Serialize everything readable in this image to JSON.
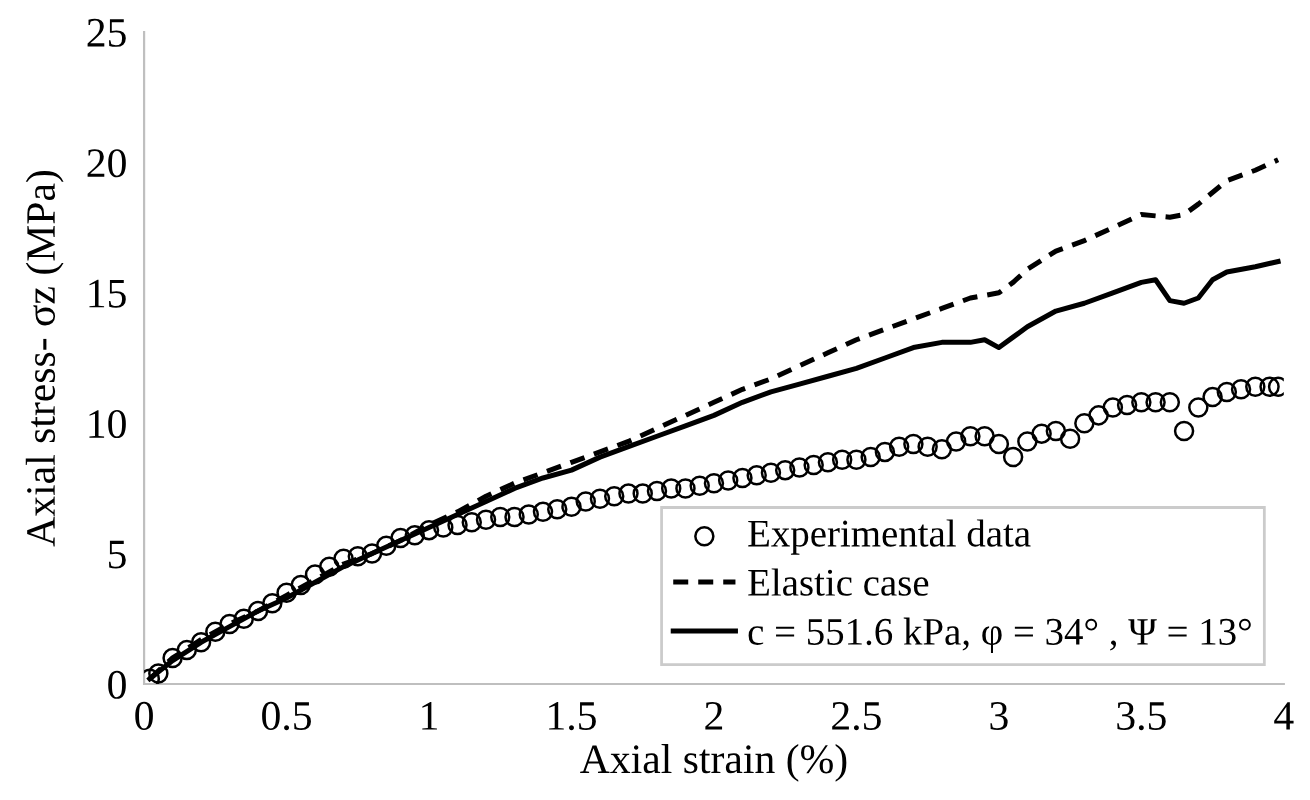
{
  "chart_data": {
    "type": "line",
    "xlabel": "Axial strain (%)",
    "ylabel": "Axial stress- σz (MPa)",
    "xlim": [
      0,
      4
    ],
    "xticks": [
      0,
      0.5,
      1,
      1.5,
      2,
      2.5,
      3,
      3.5,
      4
    ],
    "ylim": [
      0,
      25
    ],
    "yticks": [
      0,
      5,
      10,
      15,
      20,
      25
    ],
    "grid": false,
    "legend": "bottom right",
    "series": [
      {
        "name": "Experimental data",
        "type": "scatter",
        "marker": "circle",
        "color": "#000000",
        "x": [
          0.02,
          0.05,
          0.1,
          0.15,
          0.2,
          0.25,
          0.3,
          0.35,
          0.4,
          0.45,
          0.5,
          0.55,
          0.6,
          0.65,
          0.7,
          0.75,
          0.8,
          0.85,
          0.9,
          0.95,
          1.0,
          1.05,
          1.1,
          1.15,
          1.2,
          1.25,
          1.3,
          1.35,
          1.4,
          1.45,
          1.5,
          1.55,
          1.6,
          1.65,
          1.7,
          1.75,
          1.8,
          1.85,
          1.9,
          1.95,
          2.0,
          2.05,
          2.1,
          2.15,
          2.2,
          2.25,
          2.3,
          2.35,
          2.4,
          2.45,
          2.5,
          2.55,
          2.6,
          2.65,
          2.7,
          2.75,
          2.8,
          2.85,
          2.9,
          2.95,
          3.0,
          3.05,
          3.1,
          3.15,
          3.2,
          3.25,
          3.3,
          3.35,
          3.4,
          3.45,
          3.5,
          3.55,
          3.6,
          3.65,
          3.7,
          3.75,
          3.8,
          3.85,
          3.9,
          3.95,
          3.98
        ],
        "values": [
          0.2,
          0.4,
          1.0,
          1.3,
          1.6,
          2.0,
          2.3,
          2.5,
          2.8,
          3.1,
          3.5,
          3.8,
          4.2,
          4.5,
          4.8,
          4.9,
          5.0,
          5.3,
          5.6,
          5.7,
          5.9,
          6.0,
          6.1,
          6.2,
          6.3,
          6.4,
          6.4,
          6.5,
          6.6,
          6.7,
          6.8,
          7.0,
          7.1,
          7.2,
          7.3,
          7.3,
          7.4,
          7.5,
          7.5,
          7.6,
          7.7,
          7.8,
          7.9,
          8.0,
          8.1,
          8.2,
          8.3,
          8.4,
          8.5,
          8.6,
          8.6,
          8.7,
          8.9,
          9.1,
          9.2,
          9.1,
          9.0,
          9.3,
          9.5,
          9.5,
          9.2,
          8.7,
          9.3,
          9.6,
          9.7,
          9.4,
          10.0,
          10.3,
          10.6,
          10.7,
          10.8,
          10.8,
          10.8,
          9.7,
          10.6,
          11.0,
          11.2,
          11.3,
          11.4,
          11.4,
          11.4
        ]
      },
      {
        "name": "Elastic case",
        "line_style": "dashed",
        "color": "#000000",
        "x": [
          0.02,
          0.1,
          0.2,
          0.3,
          0.4,
          0.5,
          0.6,
          0.7,
          0.8,
          0.9,
          1.0,
          1.1,
          1.2,
          1.3,
          1.4,
          1.5,
          1.6,
          1.7,
          1.8,
          1.9,
          2.0,
          2.1,
          2.2,
          2.3,
          2.4,
          2.5,
          2.6,
          2.7,
          2.8,
          2.9,
          3.0,
          3.05,
          3.1,
          3.2,
          3.3,
          3.4,
          3.5,
          3.6,
          3.65,
          3.7,
          3.8,
          3.9,
          3.98
        ],
        "values": [
          0.2,
          1.0,
          1.7,
          2.3,
          2.8,
          3.4,
          4.0,
          4.6,
          5.0,
          5.5,
          6.1,
          6.6,
          7.2,
          7.7,
          8.1,
          8.5,
          8.9,
          9.3,
          9.8,
          10.3,
          10.8,
          11.3,
          11.7,
          12.2,
          12.7,
          13.2,
          13.6,
          14.0,
          14.4,
          14.8,
          15.0,
          15.4,
          15.9,
          16.6,
          17.0,
          17.5,
          18.0,
          17.9,
          18.0,
          18.4,
          19.3,
          19.7,
          20.1
        ]
      },
      {
        "name": "c = 551.6 kPa, φ = 34° , Ψ = 13°",
        "line_style": "solid",
        "color": "#000000",
        "x": [
          0.02,
          0.1,
          0.2,
          0.3,
          0.4,
          0.5,
          0.6,
          0.7,
          0.8,
          0.9,
          1.0,
          1.1,
          1.2,
          1.3,
          1.4,
          1.5,
          1.6,
          1.7,
          1.8,
          1.9,
          2.0,
          2.1,
          2.2,
          2.3,
          2.4,
          2.5,
          2.6,
          2.7,
          2.8,
          2.9,
          2.95,
          3.0,
          3.05,
          3.1,
          3.2,
          3.3,
          3.4,
          3.5,
          3.55,
          3.6,
          3.65,
          3.7,
          3.75,
          3.8,
          3.9,
          3.98
        ],
        "values": [
          0.2,
          0.9,
          1.6,
          2.2,
          2.8,
          3.3,
          3.9,
          4.5,
          5.0,
          5.5,
          6.0,
          6.5,
          7.0,
          7.5,
          7.9,
          8.2,
          8.7,
          9.1,
          9.5,
          9.9,
          10.3,
          10.8,
          11.2,
          11.5,
          11.8,
          12.1,
          12.5,
          12.9,
          13.1,
          13.1,
          13.2,
          12.9,
          13.3,
          13.7,
          14.3,
          14.6,
          15.0,
          15.4,
          15.5,
          14.7,
          14.6,
          14.8,
          15.5,
          15.8,
          16.0,
          16.2
        ]
      }
    ]
  }
}
